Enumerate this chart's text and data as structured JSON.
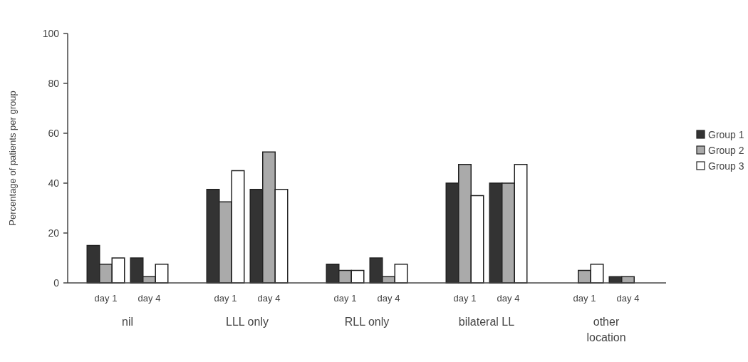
{
  "chart_data": {
    "type": "bar",
    "ylabel": "Percentage of patients per group",
    "categories": [
      "day 1",
      "day 4",
      "day 1",
      "day 4",
      "day 1",
      "day 4",
      "day 1",
      "day 4",
      "day 1",
      "day 4"
    ],
    "series": [
      {
        "name": "Group 1",
        "color": "#333333",
        "values": [
          15,
          10,
          37.5,
          37.5,
          7.5,
          10,
          40,
          40,
          0,
          2.5
        ]
      },
      {
        "name": "Group 2",
        "color": "#aaaaaa",
        "values": [
          7.5,
          2.5,
          32.5,
          52.5,
          5,
          2.5,
          47.5,
          40,
          5,
          2.5
        ]
      },
      {
        "name": "Group 3",
        "color": "#ffffff",
        "values": [
          10,
          7.5,
          45,
          37.5,
          5,
          7.5,
          35,
          47.5,
          7.5,
          0
        ]
      }
    ],
    "annotations": [
      "nil",
      "LLL only",
      "RLL only",
      "bilateral LL",
      "other location"
    ],
    "ylim": [
      0,
      100
    ],
    "yticks": [
      0,
      20,
      40,
      60,
      80,
      100
    ],
    "grid": false,
    "legend": "right"
  }
}
